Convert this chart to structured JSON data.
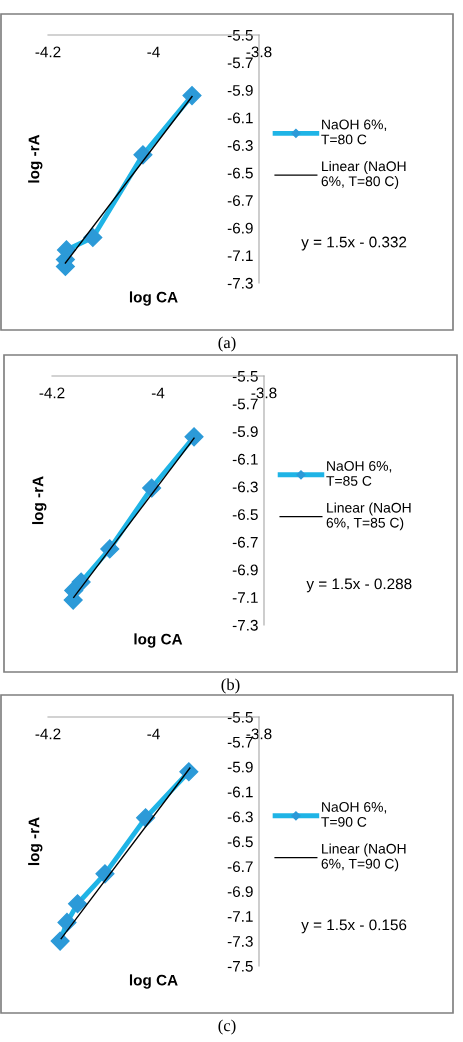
{
  "chart_data": [
    {
      "type": "line",
      "xlabel": "log CA",
      "ylabel": "log -rA",
      "xlim": [
        -4.2,
        -3.8
      ],
      "ylim": [
        -7.3,
        -5.5
      ],
      "xticks": [
        -4.2,
        -4,
        -3.8
      ],
      "yticks": [
        -5.5,
        -5.7,
        -5.9,
        -6.1,
        -6.3,
        -6.5,
        -6.7,
        -6.9,
        -7.1,
        -7.3
      ],
      "legend": "right",
      "series": [
        {
          "name": "NaOH 6%, T=80 C",
          "color": "#1fb4e6",
          "marker": "diamond",
          "x": [
            -4.167,
            -4.167,
            -4.165,
            -4.115,
            -4.02,
            -3.927
          ],
          "values": [
            -7.18,
            -7.13,
            -7.06,
            -6.97,
            -6.37,
            -5.94
          ]
        },
        {
          "name": "Linear (NaOH 6%, T=80 C)",
          "color": "#000000",
          "marker": "none",
          "x": [
            -4.167,
            -3.927
          ],
          "values": [
            -7.155,
            -5.947
          ]
        }
      ],
      "annotations": [
        "y = 1.5x - 0.332",
        "(a)"
      ]
    },
    {
      "type": "line",
      "xlabel": "log CA",
      "ylabel": "log -rA",
      "xlim": [
        -4.2,
        -3.8
      ],
      "ylim": [
        -7.3,
        -5.5
      ],
      "xticks": [
        -4.2,
        -4,
        -3.8
      ],
      "yticks": [
        -5.5,
        -5.7,
        -5.9,
        -6.1,
        -6.3,
        -6.5,
        -6.7,
        -6.9,
        -7.1,
        -7.3
      ],
      "legend": "right",
      "series": [
        {
          "name": "NaOH 6%, T=85 C",
          "color": "#1fb4e6",
          "marker": "diamond",
          "x": [
            -4.16,
            -4.159,
            -4.145,
            -4.091,
            -4.012,
            -3.932
          ],
          "values": [
            -7.12,
            -7.05,
            -6.99,
            -6.75,
            -6.31,
            -5.94
          ]
        },
        {
          "name": "Linear (NaOH 6%, T=85 C)",
          "color": "#000000",
          "marker": "none",
          "x": [
            -4.159,
            -3.932
          ],
          "values": [
            -7.1,
            -5.95
          ]
        }
      ],
      "annotations": [
        "y = 1.5x - 0.288",
        "(b)"
      ]
    },
    {
      "type": "line",
      "xlabel": "log CA",
      "ylabel": "log -rA",
      "xlim": [
        -4.2,
        -3.8
      ],
      "ylim": [
        -7.5,
        -5.5
      ],
      "xticks": [
        -4.2,
        -4,
        -3.8
      ],
      "yticks": [
        -5.5,
        -5.7,
        -5.9,
        -6.1,
        -6.3,
        -6.5,
        -6.7,
        -6.9,
        -7.1,
        -7.3,
        -7.5
      ],
      "legend": "right",
      "series": [
        {
          "name": "NaOH 6%, T=90 C",
          "color": "#1fb4e6",
          "marker": "diamond",
          "x": [
            -4.177,
            -4.164,
            -4.144,
            -4.092,
            -4.015,
            -3.933
          ],
          "values": [
            -7.3,
            -7.15,
            -7.0,
            -6.76,
            -6.31,
            -5.94
          ]
        },
        {
          "name": "Linear (NaOH 6%, T=90 C)",
          "color": "#000000",
          "marker": "none",
          "x": [
            -4.175,
            -3.931
          ],
          "values": [
            -7.28,
            -5.91
          ]
        }
      ],
      "annotations": [
        "y = 1.5x - 0.156",
        "(c)"
      ]
    }
  ]
}
